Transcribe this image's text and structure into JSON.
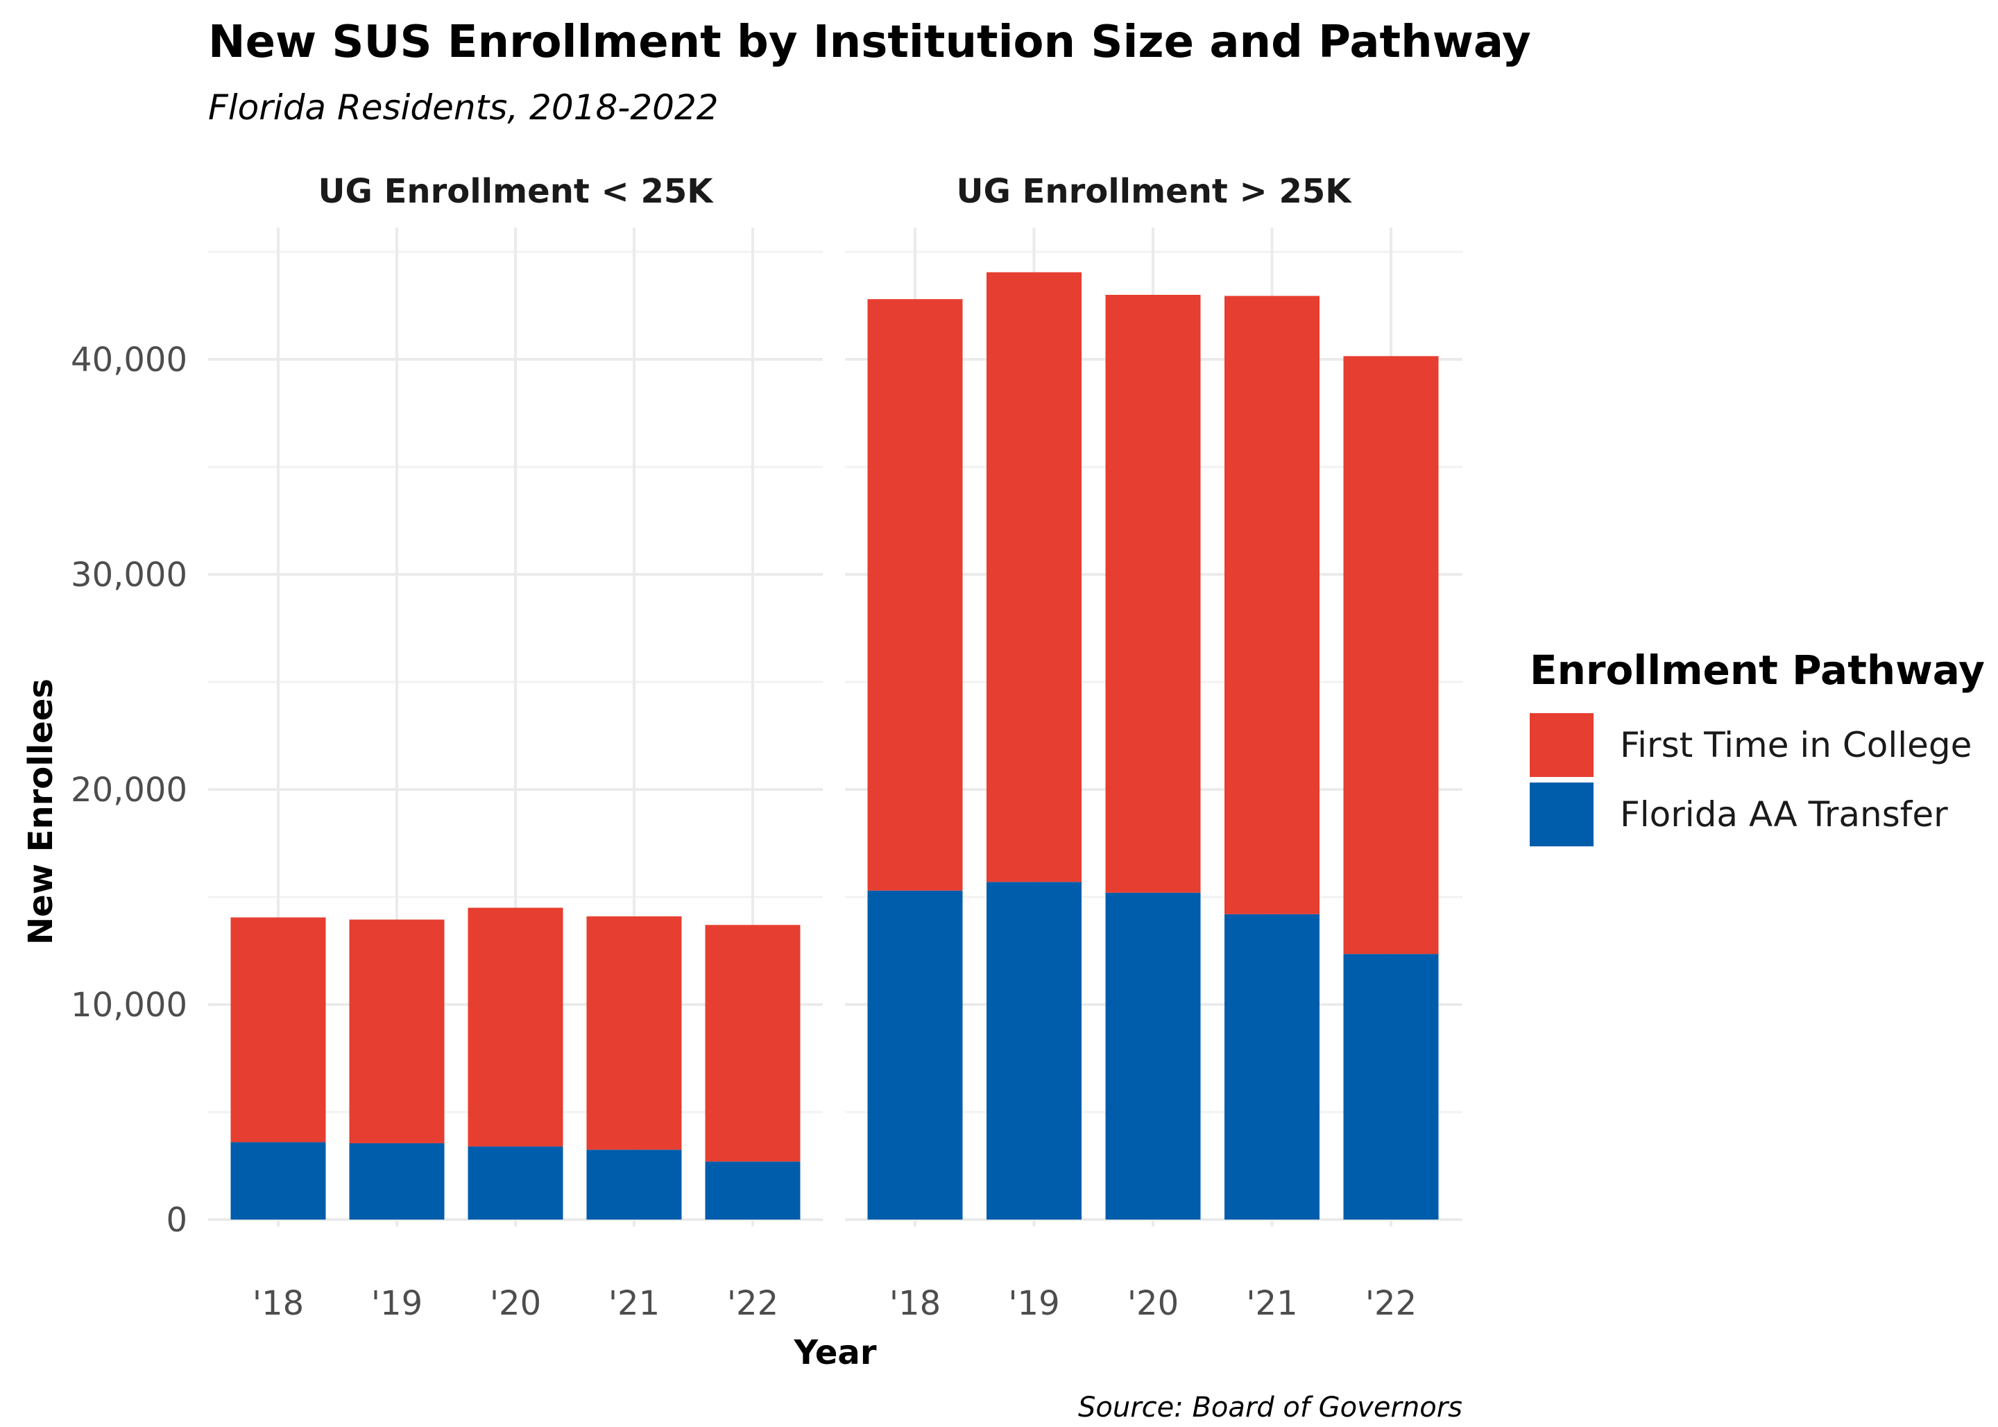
{
  "chart_data": {
    "type": "bar",
    "stacked": true,
    "title": "New SUS Enrollment by Institution Size and Pathway",
    "subtitle": "Florida Residents, 2018-2022",
    "xlabel": "Year",
    "ylabel": "New Enrollees",
    "caption": "Source: Board of Governors",
    "ylim": [
      0,
      46000
    ],
    "y_ticks": [
      0,
      10000,
      20000,
      30000,
      40000
    ],
    "y_tick_labels": [
      "0",
      "10,000",
      "20,000",
      "30,000",
      "40,000"
    ],
    "grid": true,
    "legend": {
      "title": "Enrollment Pathway",
      "position": "right",
      "entries": [
        "First Time in College",
        "Florida AA Transfer"
      ]
    },
    "series_colors": {
      "First Time in College": "#E63E30",
      "Florida AA Transfer": "#005DAC"
    },
    "categories": [
      "'18",
      "'19",
      "'20",
      "'21",
      "'22"
    ],
    "facets": [
      {
        "label": "UG Enrollment < 25K",
        "series": [
          {
            "name": "Florida AA Transfer",
            "values": [
              3600,
              3550,
              3400,
              3250,
              2700
            ]
          },
          {
            "name": "First Time in College",
            "values": [
              10450,
              10400,
              11100,
              10850,
              11000
            ]
          }
        ]
      },
      {
        "label": "UG Enrollment > 25K",
        "series": [
          {
            "name": "Florida AA Transfer",
            "values": [
              15300,
              15700,
              15200,
              14200,
              12350
            ]
          },
          {
            "name": "First Time in College",
            "values": [
              27500,
              28350,
              27800,
              28750,
              27800
            ]
          }
        ]
      }
    ]
  }
}
